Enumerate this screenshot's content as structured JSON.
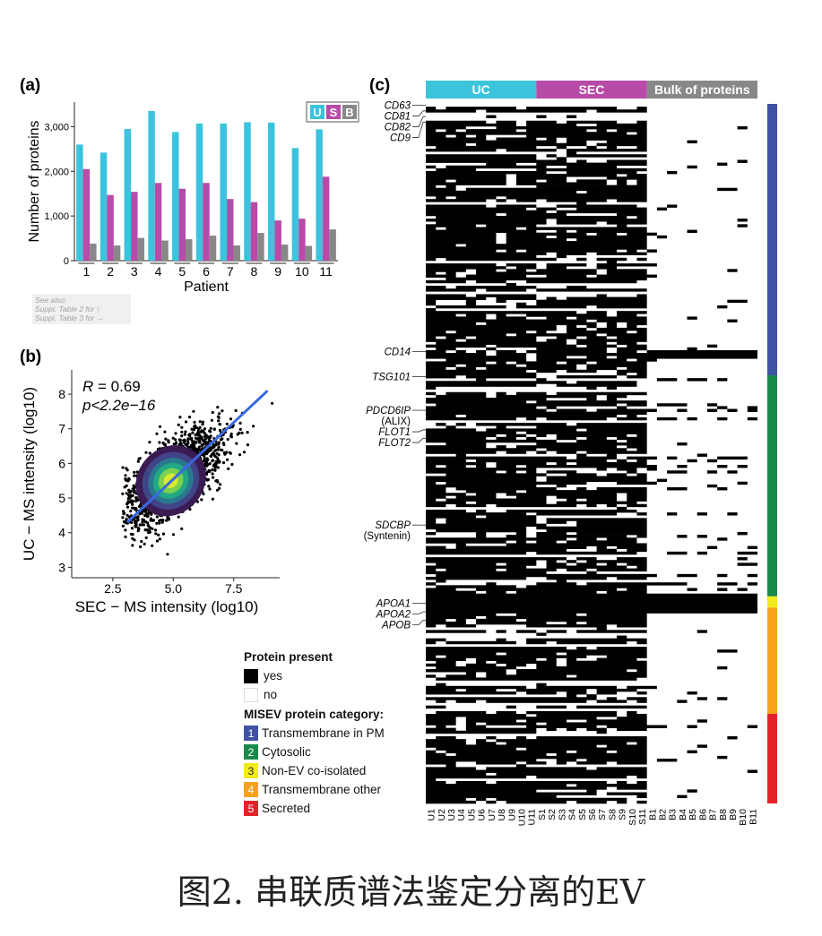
{
  "caption": "图2. 串联质谱法鉴定分离的EV",
  "note": {
    "line1": "See also:",
    "line2": "Suppl. Table 2 for ↑",
    "line3": "Suppl. Table 3 for →"
  },
  "colors": {
    "uc": "#3bc4dc",
    "sec": "#b84aa8",
    "bulk": "#888888",
    "cat1": "#3f52a4",
    "cat2": "#1a8a4a",
    "cat3": "#f2ea1c",
    "cat4": "#f6a21d",
    "cat5": "#e3222a"
  },
  "chart_data": [
    {
      "panel": "(a)",
      "type": "bar",
      "categories": [
        "1",
        "2",
        "3",
        "4",
        "5",
        "6",
        "7",
        "8",
        "9",
        "10",
        "11"
      ],
      "series": [
        {
          "name": "U",
          "values": [
            2600,
            2420,
            2950,
            3350,
            2880,
            3070,
            3070,
            3100,
            3090,
            2520,
            2940
          ]
        },
        {
          "name": "S",
          "values": [
            2050,
            1470,
            1540,
            1740,
            1610,
            1740,
            1380,
            1310,
            900,
            940,
            1880
          ]
        },
        {
          "name": "B",
          "values": [
            380,
            340,
            510,
            450,
            480,
            560,
            340,
            620,
            360,
            330,
            700
          ]
        }
      ],
      "xlabel": "Patient",
      "ylabel": "Number of proteins",
      "yticks": [
        "0",
        "1,000",
        "2,000",
        "3,000"
      ],
      "ylim": [
        0,
        3550
      ],
      "legend": [
        "U",
        "S",
        "B"
      ],
      "legend_position": "top-right"
    },
    {
      "panel": "(b)",
      "type": "scatter",
      "xlabel": "SEC − MS intensity (log10)",
      "ylabel": "UC − MS intensity (log10)",
      "xticks": [
        "2.5",
        "5.0",
        "7.5"
      ],
      "yticks": [
        "3",
        "4",
        "5",
        "6",
        "7",
        "8"
      ],
      "xlim": [
        0.8,
        9.4
      ],
      "ylim": [
        2.7,
        8.7
      ],
      "annotation_r_label": "R",
      "annotation_r_value": " = 0.69",
      "annotation_p": "p<2.2e−16",
      "fit_line": {
        "x": [
          3.1,
          8.9
        ],
        "y": [
          4.3,
          8.1
        ]
      },
      "density_center": [
        4.9,
        5.5
      ]
    },
    {
      "panel": "(c)",
      "type": "heatmap",
      "groups": [
        "UC",
        "SEC",
        "Bulk of proteins"
      ],
      "columns": [
        "U1",
        "U2",
        "U3",
        "U4",
        "U5",
        "U6",
        "U7",
        "U8",
        "U9",
        "U10",
        "U11",
        "S1",
        "S2",
        "S3",
        "S4",
        "S5",
        "S6",
        "S7",
        "S8",
        "S9",
        "S10",
        "S11",
        "B1",
        "B2",
        "B3",
        "B4",
        "B5",
        "B6",
        "B7",
        "B8",
        "B9",
        "B10",
        "B11"
      ],
      "row_labels": [
        {
          "text": "CD63",
          "row": 0,
          "italic": true
        },
        {
          "text": "CD81",
          "row": 2,
          "italic": true
        },
        {
          "text": "CD82",
          "row": 4,
          "italic": true
        },
        {
          "text": "CD9",
          "row": 6,
          "italic": true
        },
        {
          "text": "CD14",
          "row": 88,
          "italic": true
        },
        {
          "text": "TSG101",
          "row": 97,
          "italic": true
        },
        {
          "text": "PDCD6IP",
          "row": 109,
          "italic": true
        },
        {
          "text": "(ALIX)",
          "row": 112,
          "italic": false
        },
        {
          "text": "FLOT1",
          "row": 116,
          "italic": true
        },
        {
          "text": "FLOT2",
          "row": 119,
          "italic": true
        },
        {
          "text": "SDCBP",
          "row": 150,
          "italic": true
        },
        {
          "text": "(Syntenin)",
          "row": 153,
          "italic": false
        },
        {
          "text": "APOA1",
          "row": 178,
          "italic": true
        },
        {
          "text": "APOA2",
          "row": 181,
          "italic": true
        },
        {
          "text": "APOB",
          "row": 184,
          "italic": true
        }
      ],
      "n_rows": 250,
      "values_legend_title": "Protein present",
      "values_legend": [
        "yes",
        "no"
      ],
      "category_legend_title": "MISEV protein category:",
      "categories": [
        {
          "n": "1",
          "label": "Transmembrane in PM",
          "rows": [
            0,
            97
          ]
        },
        {
          "n": "2",
          "label": "Cytosolic",
          "rows": [
            97,
            176
          ]
        },
        {
          "n": "3",
          "label": "Non-EV co-isolated",
          "rows": [
            176,
            180
          ]
        },
        {
          "n": "4",
          "label": "Transmembrane other",
          "rows": [
            180,
            218
          ]
        },
        {
          "n": "5",
          "label": "Secreted",
          "rows": [
            218,
            250
          ]
        }
      ],
      "heatmap_cells": "binary presence matrix (black = yes, white = no); dense in UC/SEC columns, sparse in Bulk columns"
    }
  ]
}
